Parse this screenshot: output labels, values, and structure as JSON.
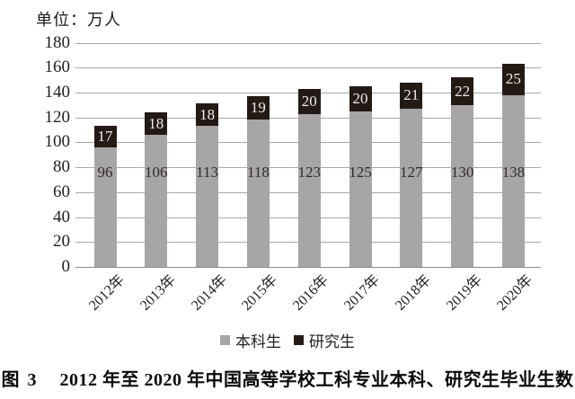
{
  "chart_data": {
    "type": "bar",
    "variant": "stacked-vertical",
    "unit_label": "单位：万人",
    "categories": [
      "2012年",
      "2013年",
      "2014年",
      "2015年",
      "2016年",
      "2017年",
      "2018年",
      "2019年",
      "2020年"
    ],
    "series": [
      {
        "name": "本科生",
        "color": "#a7a5a5",
        "label_color": "#2f2c29",
        "values": [
          96,
          106,
          113,
          118,
          123,
          125,
          127,
          130,
          138
        ]
      },
      {
        "name": "研究生",
        "color": "#241a15",
        "label_color": "#f0ece9",
        "values": [
          17,
          18,
          18,
          19,
          20,
          20,
          21,
          22,
          25
        ]
      }
    ],
    "ylim": [
      0,
      180
    ],
    "yticks": [
      0,
      20,
      40,
      60,
      80,
      100,
      120,
      140,
      160,
      180
    ],
    "grid": true,
    "legend_position": "bottom",
    "gridline_color": "#aba8a8",
    "axis_line_color": "#8c8989"
  },
  "caption": {
    "prefix": "图 3",
    "text": "2012 年至 2020 年中国高等学校工科专业本科、研究生毕业生数"
  }
}
